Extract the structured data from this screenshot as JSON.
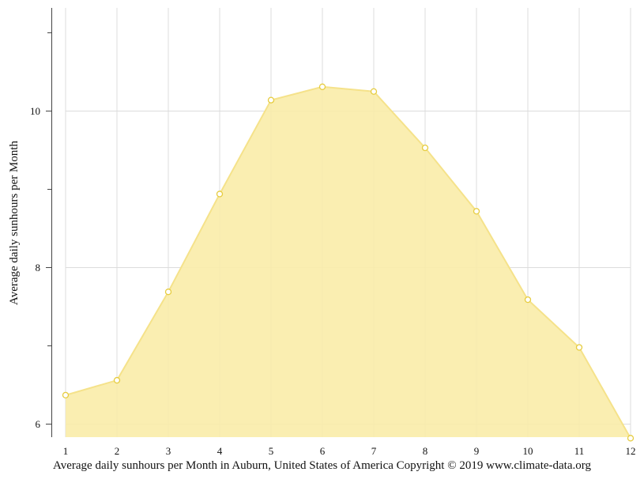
{
  "chart_data": {
    "type": "area",
    "x": [
      1,
      2,
      3,
      4,
      5,
      6,
      7,
      8,
      9,
      10,
      11,
      12
    ],
    "values": [
      6.37,
      6.56,
      7.69,
      8.94,
      10.14,
      10.31,
      10.25,
      9.53,
      8.72,
      7.59,
      6.98,
      5.82
    ],
    "xlabel": "",
    "ylabel": "Average daily sunhours per Month",
    "xlim": [
      1,
      12
    ],
    "ylim": [
      5.82,
      11.3
    ],
    "yticks_labeled": [
      6,
      8,
      10
    ],
    "yticks_minor": [
      7,
      9,
      11
    ],
    "grid": true,
    "color": "#f9eca8",
    "line_color": "#f5e28a",
    "marker_stroke": "#e6cc3f"
  },
  "caption": "Average daily sunhours per Month in Auburn, United States of America Copyright © 2019 www.climate-data.org"
}
